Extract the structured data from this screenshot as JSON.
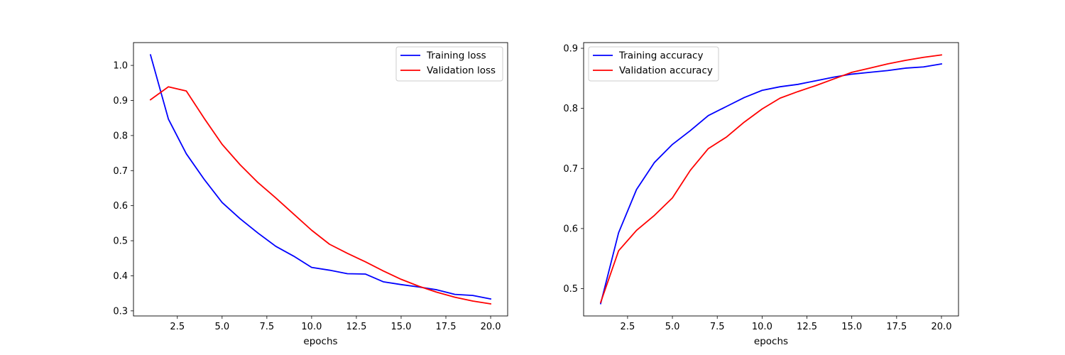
{
  "chart_data": [
    {
      "type": "line",
      "title": "",
      "xlabel": "epochs",
      "ylabel": "",
      "xlim": [
        0.05,
        20.95
      ],
      "ylim": [
        0.2855,
        1.065
      ],
      "xticks": [
        2.5,
        5.0,
        7.5,
        10.0,
        12.5,
        15.0,
        17.5,
        20.0
      ],
      "xtick_labels": [
        "2.5",
        "5.0",
        "7.5",
        "10.0",
        "12.5",
        "15.0",
        "17.5",
        "20.0"
      ],
      "yticks": [
        0.3,
        0.4,
        0.5,
        0.6,
        0.7,
        0.8,
        0.9,
        1.0
      ],
      "ytick_labels": [
        "0.3",
        "0.4",
        "0.5",
        "0.6",
        "0.7",
        "0.8",
        "0.9",
        "1.0"
      ],
      "grid": false,
      "legend_position": "upper right",
      "x": [
        1,
        2,
        3,
        4,
        5,
        6,
        7,
        8,
        9,
        10,
        11,
        12,
        13,
        14,
        15,
        16,
        17,
        18,
        19,
        20
      ],
      "series": [
        {
          "name": "Training loss",
          "color": "#0000ff",
          "values": [
            1.03,
            0.847,
            0.748,
            0.675,
            0.609,
            0.563,
            0.522,
            0.484,
            0.456,
            0.424,
            0.416,
            0.406,
            0.405,
            0.383,
            0.375,
            0.368,
            0.36,
            0.347,
            0.344,
            0.334
          ]
        },
        {
          "name": "Validation loss",
          "color": "#ff0000",
          "values": [
            0.902,
            0.939,
            0.927,
            0.849,
            0.775,
            0.717,
            0.666,
            0.622,
            0.576,
            0.53,
            0.49,
            0.464,
            0.44,
            0.414,
            0.39,
            0.37,
            0.353,
            0.339,
            0.328,
            0.32
          ]
        }
      ]
    },
    {
      "type": "line",
      "title": "",
      "xlabel": "epochs",
      "ylabel": "",
      "xlim": [
        0.05,
        20.95
      ],
      "ylim": [
        0.4545,
        0.9095
      ],
      "xticks": [
        2.5,
        5.0,
        7.5,
        10.0,
        12.5,
        15.0,
        17.5,
        20.0
      ],
      "xtick_labels": [
        "2.5",
        "5.0",
        "7.5",
        "10.0",
        "12.5",
        "15.0",
        "17.5",
        "20.0"
      ],
      "yticks": [
        0.5,
        0.6,
        0.7,
        0.8,
        0.9
      ],
      "ytick_labels": [
        "0.5",
        "0.6",
        "0.7",
        "0.8",
        "0.9"
      ],
      "grid": false,
      "legend_position": "upper left",
      "x": [
        1,
        2,
        3,
        4,
        5,
        6,
        7,
        8,
        9,
        10,
        11,
        12,
        13,
        14,
        15,
        16,
        17,
        18,
        19,
        20
      ],
      "series": [
        {
          "name": "Training accuracy",
          "color": "#0000ff",
          "values": [
            0.475,
            0.593,
            0.665,
            0.71,
            0.74,
            0.763,
            0.788,
            0.803,
            0.818,
            0.83,
            0.836,
            0.84,
            0.846,
            0.852,
            0.857,
            0.86,
            0.863,
            0.867,
            0.869,
            0.874
          ]
        },
        {
          "name": "Validation accuracy",
          "color": "#ff0000",
          "values": [
            0.477,
            0.563,
            0.597,
            0.622,
            0.651,
            0.697,
            0.733,
            0.752,
            0.777,
            0.799,
            0.817,
            0.828,
            0.838,
            0.849,
            0.86,
            0.867,
            0.874,
            0.88,
            0.885,
            0.889
          ]
        }
      ]
    }
  ]
}
